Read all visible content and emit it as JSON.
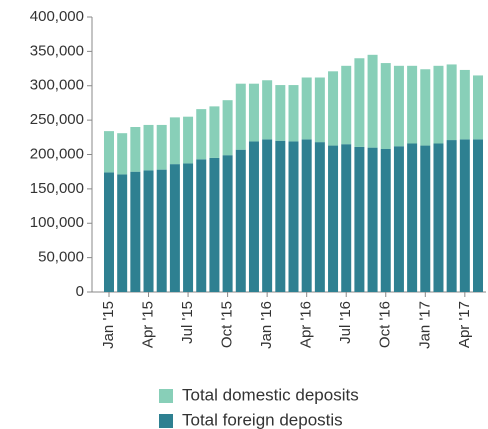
{
  "chart_data": {
    "type": "stacked_bar",
    "categories": [
      "Jan '15",
      null,
      null,
      "Apr '15",
      null,
      null,
      "Jul '15",
      null,
      null,
      "Oct '15",
      null,
      null,
      "Jan '16",
      null,
      null,
      "Apr '16",
      null,
      null,
      "Jul '16",
      null,
      null,
      "Oct '16",
      null,
      null,
      "Jan '17",
      null,
      null,
      "Apr '17",
      null
    ],
    "series": [
      {
        "name": "Total foreign depostis",
        "color": "#2e8091",
        "values": [
          174000,
          171000,
          175000,
          177000,
          178000,
          186000,
          187000,
          193000,
          195000,
          199000,
          207000,
          219000,
          222000,
          220000,
          219000,
          222000,
          218000,
          213000,
          215000,
          211000,
          210000,
          208000,
          212000,
          216000,
          213000,
          216000,
          221000,
          222000,
          222000
        ]
      },
      {
        "name": "Total domestic deposits",
        "color": "#88cfb8",
        "values": [
          60000,
          60000,
          65000,
          66000,
          65000,
          68000,
          68000,
          73000,
          75000,
          80000,
          96000,
          84000,
          86000,
          81000,
          82000,
          90000,
          94000,
          108000,
          114000,
          129000,
          135000,
          125000,
          117000,
          113000,
          111000,
          113000,
          110000,
          101000,
          93000
        ]
      }
    ],
    "ylim": [
      0,
      400000
    ],
    "yticks": [
      0,
      {
        "value": 50000,
        "label": "50,000"
      },
      {
        "value": 100000,
        "label": "100,000"
      },
      {
        "value": 150000,
        "label": "150,000"
      },
      {
        "value": 200000,
        "label": "200,000"
      },
      {
        "value": 250000,
        "label": "250,000"
      },
      {
        "value": 300000,
        "label": "300,000"
      },
      {
        "value": 350000,
        "label": "350,000"
      },
      {
        "value": 400000,
        "label": "400,000"
      }
    ]
  }
}
